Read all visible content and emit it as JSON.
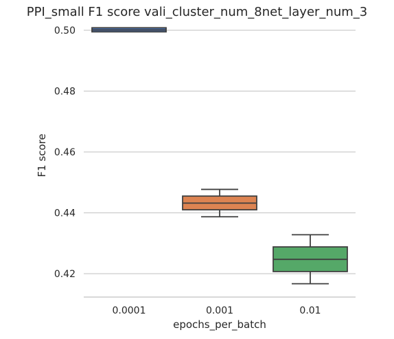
{
  "chart_data": {
    "type": "box",
    "title": "PPI_small F1 score vali_cluster_num_8net_layer_num_3",
    "xlabel": "epochs_per_batch",
    "ylabel": "F1 score",
    "categories": [
      "0.0001",
      "0.001",
      "0.01"
    ],
    "yticks": [
      0.42,
      0.44,
      0.46,
      0.48,
      0.5
    ],
    "ytick_labels": [
      "0.42",
      "0.44",
      "0.46",
      "0.48",
      "0.50"
    ],
    "ylim": [
      0.4125,
      0.5005
    ],
    "grid": "horizontal",
    "boxes": [
      {
        "category": "0.0001",
        "whisker_low": 0.5001,
        "q1": 0.5001,
        "median": 0.5001,
        "q3": 0.5002,
        "whisker_high": 0.5002,
        "color": "#4c72b0"
      },
      {
        "category": "0.001",
        "whisker_low": 0.4387,
        "q1": 0.441,
        "median": 0.4432,
        "q3": 0.4455,
        "whisker_high": 0.4477,
        "color": "#dd8452"
      },
      {
        "category": "0.01",
        "whisker_low": 0.4167,
        "q1": 0.4207,
        "median": 0.4247,
        "q3": 0.4288,
        "whisker_high": 0.4328,
        "color": "#55a868"
      }
    ],
    "line_color": "#3f3f3f"
  }
}
